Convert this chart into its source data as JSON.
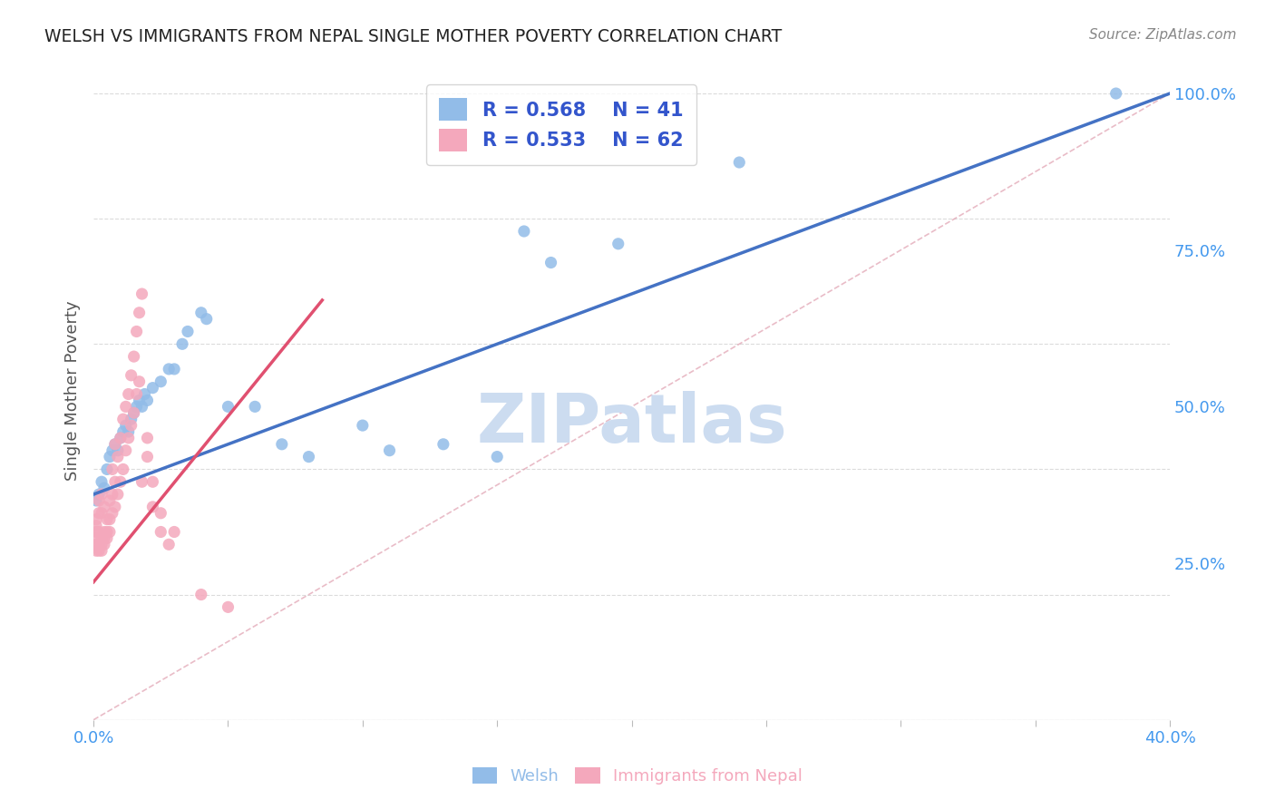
{
  "title": "WELSH VS IMMIGRANTS FROM NEPAL SINGLE MOTHER POVERTY CORRELATION CHART",
  "source": "Source: ZipAtlas.com",
  "ylabel": "Single Mother Poverty",
  "y_ticks_right": [
    "25.0%",
    "50.0%",
    "75.0%",
    "100.0%"
  ],
  "welsh_color": "#92bce8",
  "nepal_color": "#f4a8bc",
  "welsh_line_color": "#4472c4",
  "nepal_line_color": "#e05070",
  "diagonal_color": "#cccccc",
  "legend_text_color": "#3355cc",
  "watermark_color": "#ccdcf0",
  "welsh_R": "0.568",
  "welsh_N": "41",
  "nepal_R": "0.533",
  "nepal_N": "62",
  "welsh_scatter": [
    [
      0.001,
      0.35
    ],
    [
      0.002,
      0.36
    ],
    [
      0.003,
      0.38
    ],
    [
      0.004,
      0.37
    ],
    [
      0.005,
      0.4
    ],
    [
      0.006,
      0.42
    ],
    [
      0.007,
      0.43
    ],
    [
      0.008,
      0.44
    ],
    [
      0.009,
      0.43
    ],
    [
      0.01,
      0.45
    ],
    [
      0.011,
      0.46
    ],
    [
      0.012,
      0.47
    ],
    [
      0.013,
      0.46
    ],
    [
      0.014,
      0.48
    ],
    [
      0.015,
      0.49
    ],
    [
      0.016,
      0.5
    ],
    [
      0.017,
      0.51
    ],
    [
      0.018,
      0.5
    ],
    [
      0.019,
      0.52
    ],
    [
      0.02,
      0.51
    ],
    [
      0.022,
      0.53
    ],
    [
      0.025,
      0.54
    ],
    [
      0.028,
      0.56
    ],
    [
      0.03,
      0.56
    ],
    [
      0.033,
      0.6
    ],
    [
      0.035,
      0.62
    ],
    [
      0.04,
      0.65
    ],
    [
      0.042,
      0.64
    ],
    [
      0.05,
      0.5
    ],
    [
      0.06,
      0.5
    ],
    [
      0.07,
      0.44
    ],
    [
      0.08,
      0.42
    ],
    [
      0.1,
      0.47
    ],
    [
      0.11,
      0.43
    ],
    [
      0.13,
      0.44
    ],
    [
      0.15,
      0.42
    ],
    [
      0.16,
      0.78
    ],
    [
      0.17,
      0.73
    ],
    [
      0.195,
      0.76
    ],
    [
      0.24,
      0.89
    ],
    [
      0.38,
      1.0
    ]
  ],
  "nepal_scatter": [
    [
      0.001,
      0.27
    ],
    [
      0.001,
      0.28
    ],
    [
      0.001,
      0.29
    ],
    [
      0.001,
      0.3
    ],
    [
      0.001,
      0.31
    ],
    [
      0.001,
      0.32
    ],
    [
      0.002,
      0.27
    ],
    [
      0.002,
      0.28
    ],
    [
      0.002,
      0.3
    ],
    [
      0.002,
      0.33
    ],
    [
      0.002,
      0.35
    ],
    [
      0.003,
      0.27
    ],
    [
      0.003,
      0.28
    ],
    [
      0.003,
      0.29
    ],
    [
      0.003,
      0.33
    ],
    [
      0.003,
      0.36
    ],
    [
      0.004,
      0.28
    ],
    [
      0.004,
      0.29
    ],
    [
      0.004,
      0.3
    ],
    [
      0.004,
      0.34
    ],
    [
      0.005,
      0.29
    ],
    [
      0.005,
      0.3
    ],
    [
      0.005,
      0.32
    ],
    [
      0.006,
      0.3
    ],
    [
      0.006,
      0.32
    ],
    [
      0.006,
      0.35
    ],
    [
      0.007,
      0.33
    ],
    [
      0.007,
      0.36
    ],
    [
      0.007,
      0.4
    ],
    [
      0.008,
      0.34
    ],
    [
      0.008,
      0.38
    ],
    [
      0.008,
      0.44
    ],
    [
      0.009,
      0.36
    ],
    [
      0.009,
      0.42
    ],
    [
      0.01,
      0.38
    ],
    [
      0.01,
      0.45
    ],
    [
      0.011,
      0.4
    ],
    [
      0.011,
      0.48
    ],
    [
      0.012,
      0.43
    ],
    [
      0.012,
      0.5
    ],
    [
      0.013,
      0.45
    ],
    [
      0.013,
      0.52
    ],
    [
      0.014,
      0.47
    ],
    [
      0.014,
      0.55
    ],
    [
      0.015,
      0.49
    ],
    [
      0.015,
      0.58
    ],
    [
      0.016,
      0.52
    ],
    [
      0.016,
      0.62
    ],
    [
      0.017,
      0.54
    ],
    [
      0.017,
      0.65
    ],
    [
      0.018,
      0.38
    ],
    [
      0.018,
      0.68
    ],
    [
      0.02,
      0.42
    ],
    [
      0.02,
      0.45
    ],
    [
      0.022,
      0.34
    ],
    [
      0.022,
      0.38
    ],
    [
      0.025,
      0.3
    ],
    [
      0.025,
      0.33
    ],
    [
      0.028,
      0.28
    ],
    [
      0.03,
      0.3
    ],
    [
      0.04,
      0.2
    ],
    [
      0.05,
      0.18
    ]
  ],
  "background_color": "#ffffff",
  "grid_color": "#d8d8d8",
  "tick_label_color": "#4499ee",
  "xmin": 0.0,
  "xmax": 0.4,
  "ymin": 0.0,
  "ymax": 1.05
}
